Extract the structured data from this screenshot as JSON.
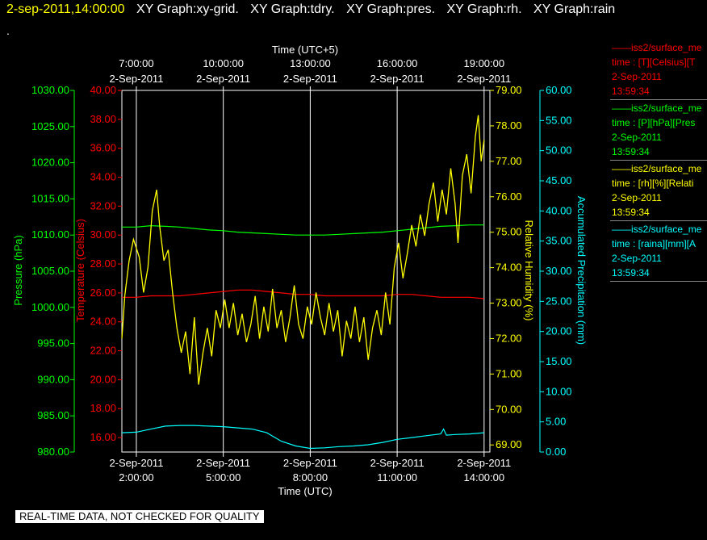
{
  "header": {
    "timestamp": "2-sep-2011,14:00:00",
    "graphs": [
      "XY Graph:xy-grid.",
      "XY Graph:tdry.",
      "XY Graph:pres.",
      "XY Graph:rh.",
      "XY Graph:rain"
    ]
  },
  "dot": ".",
  "note": "REAL-TIME DATA, NOT CHECKED FOR QUALITY",
  "colors": {
    "pressure": "#00ff00",
    "temperature": "#ff0000",
    "humidity": "#ffff00",
    "precip": "#00ffff",
    "grid": "#ffffff"
  },
  "legend": [
    {
      "line1": "——iss2/surface_me",
      "line2": "time : [T][Celsius][T",
      "line3": "2-Sep-2011",
      "line4": "13:59:34",
      "color": "#ff0000"
    },
    {
      "line1": "——iss2/surface_me",
      "line2": "time : [P][hPa][Pres",
      "line3": "2-Sep-2011",
      "line4": "13:59:34",
      "color": "#00ff00"
    },
    {
      "line1": "——iss2/surface_me",
      "line2": "time : [rh][%][Relati",
      "line3": "2-Sep-2011",
      "line4": "13:59:34",
      "color": "#ffff00"
    },
    {
      "line1": "——iss2/surface_me",
      "line2": "time : [raina][mm][A",
      "line3": "2-Sep-2011",
      "line4": "13:59:34",
      "color": "#00ffff"
    }
  ],
  "chart_data": {
    "type": "line",
    "x_unit": "hours UTC, 2-Sep-2011",
    "xlim": [
      1.5,
      14.2
    ],
    "top_axis": {
      "label": "Time (UTC+5)",
      "ticks": [
        {
          "x": 2,
          "line1": "7:00:00",
          "line2": "2-Sep-2011"
        },
        {
          "x": 5,
          "line1": "10:00:00",
          "line2": "2-Sep-2011"
        },
        {
          "x": 8,
          "line1": "13:00:00",
          "line2": "2-Sep-2011"
        },
        {
          "x": 11,
          "line1": "16:00:00",
          "line2": "2-Sep-2011"
        },
        {
          "x": 14,
          "line1": "19:00:00",
          "line2": "2-Sep-2011"
        }
      ]
    },
    "bottom_axis": {
      "label": "Time (UTC)",
      "ticks": [
        {
          "x": 2,
          "line1": "2-Sep-2011",
          "line2": "2:00:00"
        },
        {
          "x": 5,
          "line1": "2-Sep-2011",
          "line2": "5:00:00"
        },
        {
          "x": 8,
          "line1": "2-Sep-2011",
          "line2": "8:00:00"
        },
        {
          "x": 11,
          "line1": "2-Sep-2011",
          "line2": "11:00:00"
        },
        {
          "x": 14,
          "line1": "2-Sep-2011",
          "line2": "14:00:00"
        }
      ]
    },
    "grid": true,
    "axes": {
      "pressure": {
        "label": "Pressure (hPa)",
        "ylim": [
          980,
          1030
        ],
        "ticks": [
          "980.00",
          "985.00",
          "990.00",
          "995.00",
          "1000.00",
          "1005.00",
          "1010.00",
          "1015.00",
          "1020.00",
          "1025.00",
          "1030.00"
        ]
      },
      "temperature": {
        "label": "Temperature (Celsius)",
        "ylim": [
          15,
          40
        ],
        "ticks": [
          "16.00",
          "18.00",
          "20.00",
          "22.00",
          "24.00",
          "26.00",
          "28.00",
          "30.00",
          "32.00",
          "34.00",
          "36.00",
          "38.00",
          "40.00"
        ]
      },
      "humidity": {
        "label": "Relative Humidity (%)",
        "ylim": [
          68.8,
          79
        ],
        "ticks": [
          "69.00",
          "70.00",
          "71.00",
          "72.00",
          "73.00",
          "74.00",
          "75.00",
          "76.00",
          "77.00",
          "78.00",
          "79.00"
        ]
      },
      "precip": {
        "label": "Accumulated Precipitation (mm)",
        "ylim": [
          0,
          60
        ],
        "ticks": [
          "0.00",
          "5.00",
          "10.00",
          "15.00",
          "20.00",
          "25.00",
          "30.00",
          "35.00",
          "40.00",
          "45.00",
          "50.00",
          "55.00",
          "60.00"
        ]
      }
    },
    "series": [
      {
        "key": "pressure",
        "points": [
          [
            1.5,
            1011.1
          ],
          [
            2,
            1011.1
          ],
          [
            2.5,
            1011.3
          ],
          [
            3,
            1011.2
          ],
          [
            3.5,
            1011.1
          ],
          [
            4,
            1010.9
          ],
          [
            4.5,
            1010.7
          ],
          [
            5,
            1010.6
          ],
          [
            5.5,
            1010.4
          ],
          [
            6,
            1010.3
          ],
          [
            6.5,
            1010.2
          ],
          [
            7,
            1010.1
          ],
          [
            7.5,
            1010.0
          ],
          [
            8,
            1010.0
          ],
          [
            8.5,
            1010.0
          ],
          [
            9,
            1010.1
          ],
          [
            9.5,
            1010.2
          ],
          [
            10,
            1010.3
          ],
          [
            10.5,
            1010.4
          ],
          [
            11,
            1010.6
          ],
          [
            11.5,
            1010.8
          ],
          [
            12,
            1011.0
          ],
          [
            12.5,
            1011.2
          ],
          [
            13,
            1011.3
          ],
          [
            13.5,
            1011.4
          ],
          [
            14,
            1011.4
          ]
        ]
      },
      {
        "key": "temperature",
        "points": [
          [
            1.5,
            25.7
          ],
          [
            2,
            25.7
          ],
          [
            2.5,
            25.8
          ],
          [
            3,
            25.8
          ],
          [
            3.5,
            25.8
          ],
          [
            4,
            25.9
          ],
          [
            4.5,
            26.0
          ],
          [
            5,
            26.1
          ],
          [
            5.5,
            26.2
          ],
          [
            6,
            26.2
          ],
          [
            6.5,
            26.1
          ],
          [
            7,
            26.0
          ],
          [
            7.5,
            25.9
          ],
          [
            8,
            25.9
          ],
          [
            8.5,
            25.8
          ],
          [
            9,
            25.8
          ],
          [
            9.5,
            25.8
          ],
          [
            10,
            25.8
          ],
          [
            10.5,
            25.8
          ],
          [
            11,
            25.9
          ],
          [
            11.5,
            25.9
          ],
          [
            12,
            25.8
          ],
          [
            12.5,
            25.7
          ],
          [
            13,
            25.7
          ],
          [
            13.5,
            25.7
          ],
          [
            14,
            25.6
          ]
        ]
      },
      {
        "key": "humidity",
        "points": [
          [
            1.5,
            72.0
          ],
          [
            1.6,
            73.2
          ],
          [
            1.75,
            74.2
          ],
          [
            1.9,
            74.8
          ],
          [
            2.1,
            74.3
          ],
          [
            2.25,
            73.3
          ],
          [
            2.4,
            74.0
          ],
          [
            2.55,
            75.6
          ],
          [
            2.7,
            76.2
          ],
          [
            2.8,
            75.2
          ],
          [
            2.95,
            74.2
          ],
          [
            3.1,
            74.5
          ],
          [
            3.25,
            73.3
          ],
          [
            3.4,
            72.3
          ],
          [
            3.55,
            71.6
          ],
          [
            3.7,
            72.2
          ],
          [
            3.85,
            71.0
          ],
          [
            4.0,
            72.6
          ],
          [
            4.15,
            70.7
          ],
          [
            4.3,
            71.6
          ],
          [
            4.45,
            72.3
          ],
          [
            4.6,
            71.5
          ],
          [
            4.75,
            72.8
          ],
          [
            4.9,
            72.3
          ],
          [
            5.05,
            73.1
          ],
          [
            5.2,
            72.3
          ],
          [
            5.35,
            73.0
          ],
          [
            5.5,
            72.1
          ],
          [
            5.65,
            72.7
          ],
          [
            5.8,
            71.9
          ],
          [
            5.95,
            72.4
          ],
          [
            6.1,
            73.2
          ],
          [
            6.25,
            72.0
          ],
          [
            6.4,
            72.9
          ],
          [
            6.55,
            72.2
          ],
          [
            6.7,
            73.4
          ],
          [
            6.85,
            72.3
          ],
          [
            7.0,
            72.8
          ],
          [
            7.15,
            71.9
          ],
          [
            7.3,
            72.6
          ],
          [
            7.45,
            73.5
          ],
          [
            7.6,
            72.4
          ],
          [
            7.75,
            72.0
          ],
          [
            7.9,
            72.9
          ],
          [
            8.05,
            72.4
          ],
          [
            8.2,
            73.3
          ],
          [
            8.35,
            72.6
          ],
          [
            8.5,
            72.1
          ],
          [
            8.65,
            73.0
          ],
          [
            8.8,
            72.2
          ],
          [
            8.95,
            72.8
          ],
          [
            9.1,
            71.5
          ],
          [
            9.25,
            72.5
          ],
          [
            9.4,
            72.0
          ],
          [
            9.55,
            72.9
          ],
          [
            9.7,
            71.9
          ],
          [
            9.85,
            72.6
          ],
          [
            10.0,
            71.4
          ],
          [
            10.15,
            72.3
          ],
          [
            10.3,
            72.8
          ],
          [
            10.45,
            72.1
          ],
          [
            10.6,
            73.3
          ],
          [
            10.75,
            72.4
          ],
          [
            10.9,
            74.0
          ],
          [
            11.05,
            74.7
          ],
          [
            11.2,
            73.7
          ],
          [
            11.35,
            74.4
          ],
          [
            11.5,
            75.2
          ],
          [
            11.65,
            74.6
          ],
          [
            11.8,
            75.5
          ],
          [
            11.95,
            74.9
          ],
          [
            12.1,
            75.8
          ],
          [
            12.25,
            76.4
          ],
          [
            12.4,
            75.3
          ],
          [
            12.55,
            76.2
          ],
          [
            12.7,
            75.5
          ],
          [
            12.85,
            76.8
          ],
          [
            13.0,
            75.8
          ],
          [
            13.1,
            74.7
          ],
          [
            13.25,
            76.6
          ],
          [
            13.4,
            77.2
          ],
          [
            13.55,
            76.1
          ],
          [
            13.7,
            77.7
          ],
          [
            13.8,
            78.3
          ],
          [
            13.9,
            77.0
          ],
          [
            14.0,
            77.6
          ]
        ]
      },
      {
        "key": "precip",
        "points": [
          [
            1.5,
            3.2
          ],
          [
            2,
            3.3
          ],
          [
            2.5,
            3.8
          ],
          [
            3,
            4.3
          ],
          [
            3.5,
            4.4
          ],
          [
            4,
            4.4
          ],
          [
            4.5,
            4.3
          ],
          [
            5,
            4.2
          ],
          [
            5.5,
            4.0
          ],
          [
            6,
            3.8
          ],
          [
            6.5,
            3.2
          ],
          [
            7,
            1.8
          ],
          [
            7.5,
            1.0
          ],
          [
            8,
            0.6
          ],
          [
            8.5,
            0.7
          ],
          [
            9,
            0.9
          ],
          [
            9.5,
            1.0
          ],
          [
            10,
            1.2
          ],
          [
            10.5,
            1.6
          ],
          [
            11,
            2.1
          ],
          [
            11.5,
            2.4
          ],
          [
            12,
            2.7
          ],
          [
            12.5,
            3.0
          ],
          [
            12.6,
            3.8
          ],
          [
            12.7,
            2.8
          ],
          [
            13,
            2.9
          ],
          [
            13.5,
            3.0
          ],
          [
            14,
            3.2
          ]
        ]
      }
    ]
  }
}
